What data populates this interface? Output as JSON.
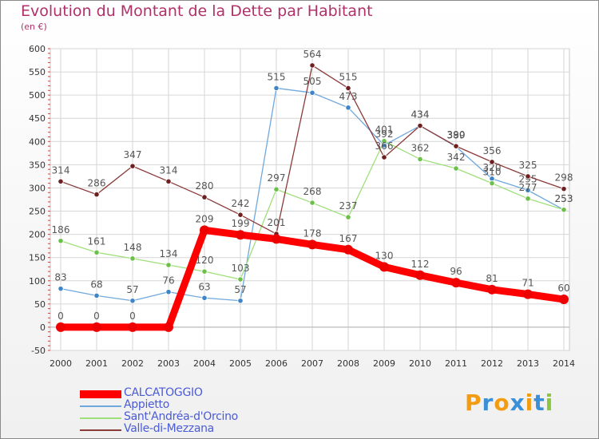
{
  "title": "Evolution du Montant de la Dette par Habitant",
  "subtitle": "(en €)",
  "logo": {
    "letters": [
      "P",
      "r",
      "o",
      "x",
      "i",
      "t",
      "i"
    ],
    "colors": [
      "#f39c12",
      "#3b8fd6",
      "#f39c12",
      "#3b8fd6",
      "#f39c12",
      "#3b8fd6",
      "#8cc63f"
    ]
  },
  "chart_data": {
    "type": "line",
    "x": [
      "2000",
      "2001",
      "2002",
      "2003",
      "2004",
      "2005",
      "2006",
      "2007",
      "2008",
      "2009",
      "2010",
      "2011",
      "2012",
      "2013",
      "2014"
    ],
    "ylim": [
      -50,
      600
    ],
    "yticks": [
      "-50",
      "0",
      "50",
      "100",
      "150",
      "200",
      "250",
      "300",
      "350",
      "400",
      "450",
      "500",
      "550",
      "600"
    ],
    "grid": true,
    "legend_position": "bottom",
    "series": [
      {
        "name": "CALCATOGGIO",
        "color": "#ff0000",
        "point_color": "#ee0000",
        "width": 9,
        "values": [
          0,
          0,
          0,
          0,
          209,
          199,
          190,
          178,
          167,
          130,
          112,
          96,
          81,
          71,
          60
        ],
        "labels": [
          "0",
          "0",
          "0",
          "",
          "209",
          "199",
          "",
          "178",
          "167",
          "130",
          "112",
          "96",
          "81",
          "71",
          "60"
        ]
      },
      {
        "name": "Appietto",
        "color": "#6fa8dc",
        "point_color": "#3d85c6",
        "width": 1.3,
        "values": [
          83,
          68,
          57,
          76,
          63,
          57,
          515,
          505,
          473,
          392,
          434,
          389,
          320,
          295,
          253
        ],
        "labels": [
          "83",
          "68",
          "57",
          "76",
          "63",
          "57",
          "515",
          "505",
          "473",
          "392",
          "434",
          "389",
          "320",
          "295",
          "253"
        ]
      },
      {
        "name": "Sant'Andréa-d'Orcino",
        "color": "#9fe07a",
        "point_color": "#6cc04a",
        "width": 1.3,
        "values": [
          186,
          161,
          148,
          134,
          120,
          103,
          297,
          268,
          237,
          401,
          362,
          342,
          310,
          277,
          253
        ],
        "labels": [
          "186",
          "161",
          "148",
          "134",
          "120",
          "103",
          "297",
          "268",
          "237",
          "401",
          "362",
          "342",
          "310",
          "277",
          "253"
        ]
      },
      {
        "name": "Valle-di-Mezzana",
        "color": "#8b3a3a",
        "point_color": "#6e1f1f",
        "width": 1.3,
        "values": [
          314,
          286,
          347,
          314,
          280,
          242,
          201,
          564,
          515,
          366,
          434,
          390,
          356,
          325,
          298
        ],
        "labels": [
          "314",
          "286",
          "347",
          "314",
          "280",
          "242",
          "201",
          "564",
          "515",
          "366",
          "434",
          "390",
          "356",
          "325",
          "298"
        ]
      }
    ]
  }
}
